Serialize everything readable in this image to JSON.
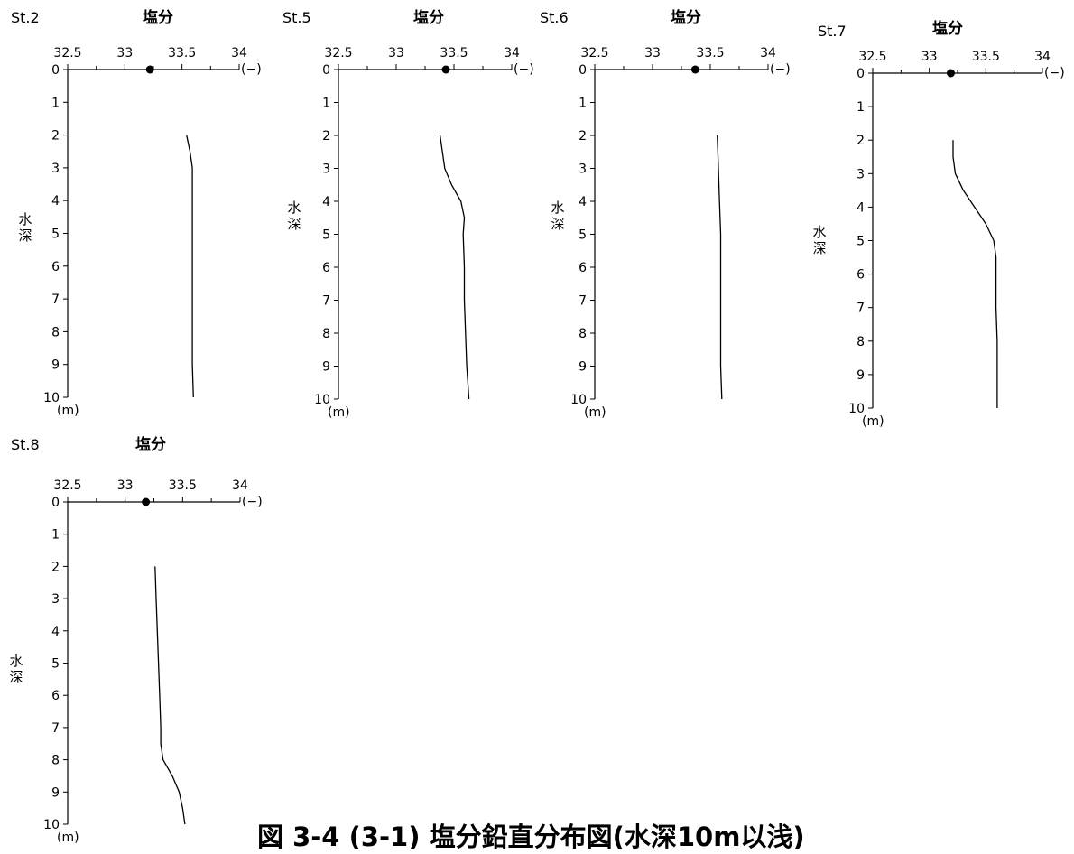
{
  "figure_caption": "図 3-4 (3-1) 塩分鉛直分布図(水深10m以浅)",
  "chart_data": [
    {
      "type": "line",
      "station": "St.2",
      "title": "塩分",
      "xlabel": "水深",
      "x_unit": "(−)",
      "y_unit": "(m)",
      "xlim": [
        32.5,
        34
      ],
      "ylim": [
        0,
        10
      ],
      "x_ticks": [
        "32.5",
        "33",
        "33.5",
        "34"
      ],
      "y_ticks": [
        "0",
        "1",
        "2",
        "3",
        "4",
        "5",
        "6",
        "7",
        "8",
        "9",
        "10"
      ],
      "surface_point": {
        "salinity": 33.22,
        "depth": 0
      },
      "profile": {
        "depth": [
          2.0,
          2.5,
          3.0,
          4.0,
          5.0,
          6.0,
          7.0,
          8.0,
          9.0,
          10.0
        ],
        "salinity": [
          33.54,
          33.57,
          33.59,
          33.59,
          33.59,
          33.59,
          33.59,
          33.59,
          33.59,
          33.6
        ]
      }
    },
    {
      "type": "line",
      "station": "St.5",
      "title": "塩分",
      "xlabel": "水深",
      "x_unit": "(−)",
      "y_unit": "(m)",
      "xlim": [
        32.5,
        34
      ],
      "ylim": [
        0,
        10
      ],
      "x_ticks": [
        "32.5",
        "33",
        "33.5",
        "34"
      ],
      "y_ticks": [
        "0",
        "1",
        "2",
        "3",
        "4",
        "5",
        "6",
        "7",
        "8",
        "9",
        "10"
      ],
      "surface_point": {
        "salinity": 33.43,
        "depth": 0
      },
      "profile": {
        "depth": [
          2.0,
          2.5,
          3.0,
          3.5,
          4.0,
          4.5,
          5.0,
          6.0,
          7.0,
          8.0,
          9.0,
          10.0
        ],
        "salinity": [
          33.38,
          33.4,
          33.42,
          33.48,
          33.56,
          33.59,
          33.58,
          33.59,
          33.59,
          33.6,
          33.61,
          33.63
        ]
      }
    },
    {
      "type": "line",
      "station": "St.6",
      "title": "塩分",
      "xlabel": "水深",
      "x_unit": "(−)",
      "y_unit": "(m)",
      "xlim": [
        32.5,
        34
      ],
      "ylim": [
        0,
        10
      ],
      "x_ticks": [
        "32.5",
        "33",
        "33.5",
        "34"
      ],
      "y_ticks": [
        "0",
        "1",
        "2",
        "3",
        "4",
        "5",
        "6",
        "7",
        "8",
        "9",
        "10"
      ],
      "surface_point": {
        "salinity": 33.37,
        "depth": 0
      },
      "profile": {
        "depth": [
          2.0,
          3.0,
          4.0,
          5.0,
          6.0,
          7.0,
          8.0,
          9.0,
          10.0
        ],
        "salinity": [
          33.56,
          33.57,
          33.58,
          33.59,
          33.59,
          33.59,
          33.59,
          33.59,
          33.6
        ]
      }
    },
    {
      "type": "line",
      "station": "St.7",
      "title": "塩分",
      "xlabel": "水深",
      "x_unit": "(−)",
      "y_unit": "(m)",
      "xlim": [
        32.5,
        34
      ],
      "ylim": [
        0,
        10
      ],
      "x_ticks": [
        "32.5",
        "33",
        "33.5",
        "34"
      ],
      "y_ticks": [
        "0",
        "1",
        "2",
        "3",
        "4",
        "5",
        "6",
        "7",
        "8",
        "9",
        "10"
      ],
      "surface_point": {
        "salinity": 33.19,
        "depth": 0
      },
      "profile": {
        "depth": [
          2.0,
          2.5,
          3.0,
          3.5,
          4.0,
          4.5,
          5.0,
          5.5,
          6.0,
          7.0,
          8.0,
          9.0,
          10.0
        ],
        "salinity": [
          33.21,
          33.21,
          33.23,
          33.3,
          33.4,
          33.5,
          33.57,
          33.59,
          33.59,
          33.59,
          33.6,
          33.6,
          33.6
        ]
      }
    },
    {
      "type": "line",
      "station": "St.8",
      "title": "塩分",
      "xlabel": "水深",
      "x_unit": "(−)",
      "y_unit": "(m)",
      "xlim": [
        32.5,
        34
      ],
      "ylim": [
        0,
        10
      ],
      "x_ticks": [
        "32.5",
        "33",
        "33.5",
        "34"
      ],
      "y_ticks": [
        "0",
        "1",
        "2",
        "3",
        "4",
        "5",
        "6",
        "7",
        "8",
        "9",
        "10"
      ],
      "surface_point": {
        "salinity": 33.18,
        "depth": 0
      },
      "profile": {
        "depth": [
          2.0,
          3.0,
          4.0,
          5.0,
          6.0,
          7.0,
          7.5,
          8.0,
          8.5,
          9.0,
          9.5,
          10.0
        ],
        "salinity": [
          33.26,
          33.27,
          33.28,
          33.29,
          33.3,
          33.31,
          33.31,
          33.33,
          33.41,
          33.47,
          33.5,
          33.52
        ]
      }
    }
  ]
}
